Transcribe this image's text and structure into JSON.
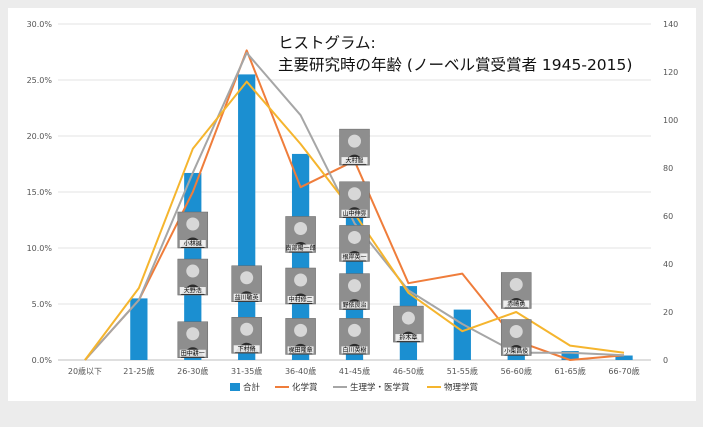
{
  "chart_data": {
    "type": "bar",
    "title_line1": "ヒストグラム:",
    "title_line2": "主要研究時の年齢 (ノーベル賞受賞者 1945-2015)",
    "categories": [
      "20歳以下",
      "21-25歳",
      "26-30歳",
      "31-35歳",
      "36-40歳",
      "41-45歳",
      "46-50歳",
      "51-55歳",
      "56-60歳",
      "61-65歳",
      "66-70歳"
    ],
    "y_left": {
      "min": 0,
      "max": 30,
      "step": 5,
      "format": "percent",
      "tick_labels": [
        "0.0%",
        "5.0%",
        "10.0%",
        "15.0%",
        "20.0%",
        "25.0%",
        "30.0%"
      ]
    },
    "y_right": {
      "min": 0,
      "max": 140,
      "step": 20,
      "tick_labels": [
        "0",
        "20",
        "40",
        "60",
        "80",
        "100",
        "120",
        "140"
      ]
    },
    "series": [
      {
        "name": "合計",
        "type": "bar",
        "axis": "left",
        "color": "#1b8fd1",
        "values": [
          0,
          5.5,
          16.7,
          25.5,
          18.4,
          14.8,
          6.6,
          4.5,
          2.3,
          0.8,
          0.4
        ]
      },
      {
        "name": "化学賞",
        "type": "line",
        "axis": "right",
        "color": "#ef7d3b",
        "values": [
          0,
          25,
          70,
          129,
          72,
          83,
          32,
          36,
          8,
          0,
          2
        ]
      },
      {
        "name": "生理学・医学賞",
        "type": "line",
        "axis": "right",
        "color": "#a6a6a6",
        "values": [
          0,
          25,
          78,
          128,
          102,
          57,
          29,
          15,
          3,
          3,
          2
        ]
      },
      {
        "name": "物理学賞",
        "type": "line",
        "axis": "right",
        "color": "#f5b52e",
        "values": [
          0,
          30,
          88,
          116,
          90,
          61,
          28,
          12,
          20,
          6,
          3
        ]
      }
    ],
    "grid": "horizontal",
    "legend_position": "bottom",
    "annotations": [
      {
        "label": "小林誠",
        "category": "26-30歳",
        "level": 10.0
      },
      {
        "label": "天野浩",
        "category": "26-30歳",
        "level": 5.8
      },
      {
        "label": "田中耕一",
        "category": "26-30歳",
        "level": 0.2
      },
      {
        "label": "益川敏英",
        "category": "31-35歳",
        "level": 5.2
      },
      {
        "label": "下村脩",
        "category": "31-35歳",
        "level": 0.6
      },
      {
        "label": "南部陽一郎",
        "category": "36-40歳",
        "level": 9.6
      },
      {
        "label": "中村修二",
        "category": "36-40歳",
        "level": 5.0
      },
      {
        "label": "梶田隆章",
        "category": "36-40歳",
        "level": 0.5
      },
      {
        "label": "大村智",
        "category": "41-45歳",
        "level": 17.4
      },
      {
        "label": "山中伸弥",
        "category": "41-45歳",
        "level": 12.7
      },
      {
        "label": "根岸英一",
        "category": "41-45歳",
        "level": 8.8
      },
      {
        "label": "野依良治",
        "category": "41-45歳",
        "level": 4.5
      },
      {
        "label": "白川英樹",
        "category": "41-45歳",
        "level": 0.5
      },
      {
        "label": "鈴木章",
        "category": "46-50歳",
        "level": 1.6
      },
      {
        "label": "赤崎勇",
        "category": "56-60歳",
        "level": 4.6
      },
      {
        "label": "小柴昌俊",
        "category": "56-60歳",
        "level": 0.4
      }
    ]
  }
}
